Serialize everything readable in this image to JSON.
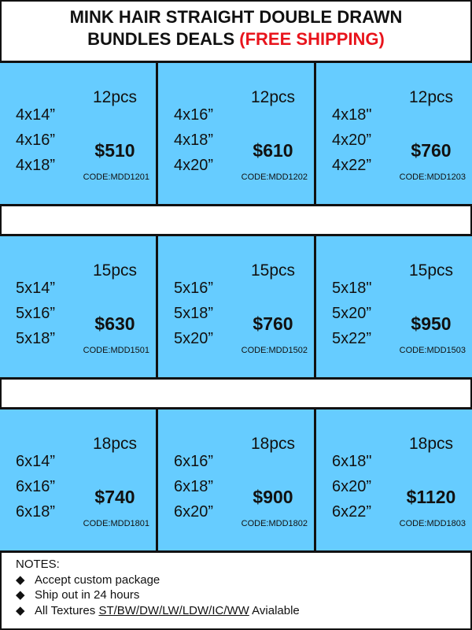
{
  "title": {
    "line1": "MINK HAIR STRAIGHT DOUBLE DRAWN",
    "line2": "BUNDLES DEALS",
    "highlight": "(FREE SHIPPING)",
    "highlight_color": "#e8141c"
  },
  "accent_color": "#66ccff",
  "rows": [
    {
      "cells": [
        {
          "sizes": [
            "4x14”",
            "4x16”",
            "4x18”"
          ],
          "pcs": "12pcs",
          "price": "$510",
          "code": "CODE:MDD1201"
        },
        {
          "sizes": [
            "4x16”",
            "4x18”",
            "4x20”"
          ],
          "pcs": "12pcs",
          "price": "$610",
          "code": "CODE:MDD1202"
        },
        {
          "sizes": [
            "4x18\"",
            "4x20”",
            "4x22”"
          ],
          "pcs": "12pcs",
          "price": "$760",
          "code": "CODE:MDD1203"
        }
      ]
    },
    {
      "cells": [
        {
          "sizes": [
            "5x14”",
            "5x16”",
            "5x18”"
          ],
          "pcs": "15pcs",
          "price": "$630",
          "code": "CODE:MDD1501"
        },
        {
          "sizes": [
            "5x16”",
            "5x18”",
            "5x20”"
          ],
          "pcs": "15pcs",
          "price": "$760",
          "code": "CODE:MDD1502"
        },
        {
          "sizes": [
            "5x18\"",
            "5x20”",
            "5x22”"
          ],
          "pcs": "15pcs",
          "price": "$950",
          "code": "CODE:MDD1503"
        }
      ]
    },
    {
      "cells": [
        {
          "sizes": [
            "6x14”",
            "6x16”",
            "6x18”"
          ],
          "pcs": "18pcs",
          "price": "$740",
          "code": "CODE:MDD1801"
        },
        {
          "sizes": [
            "6x16”",
            "6x18”",
            "6x20”"
          ],
          "pcs": "18pcs",
          "price": "$900",
          "code": "CODE:MDD1802"
        },
        {
          "sizes": [
            "6x18\"",
            "6x20”",
            "6x22”"
          ],
          "pcs": "18pcs",
          "price": "$1120",
          "code": "CODE:MDD1803"
        }
      ]
    }
  ],
  "notes": {
    "heading": "NOTES:",
    "bullet": "◆",
    "items": [
      "Accept custom package",
      "Ship out in 24 hours"
    ],
    "textures_prefix": "All Textures",
    "textures": "ST/BW/DW/LW/LDW/IC/WW",
    "textures_suffix": "Avialable"
  }
}
